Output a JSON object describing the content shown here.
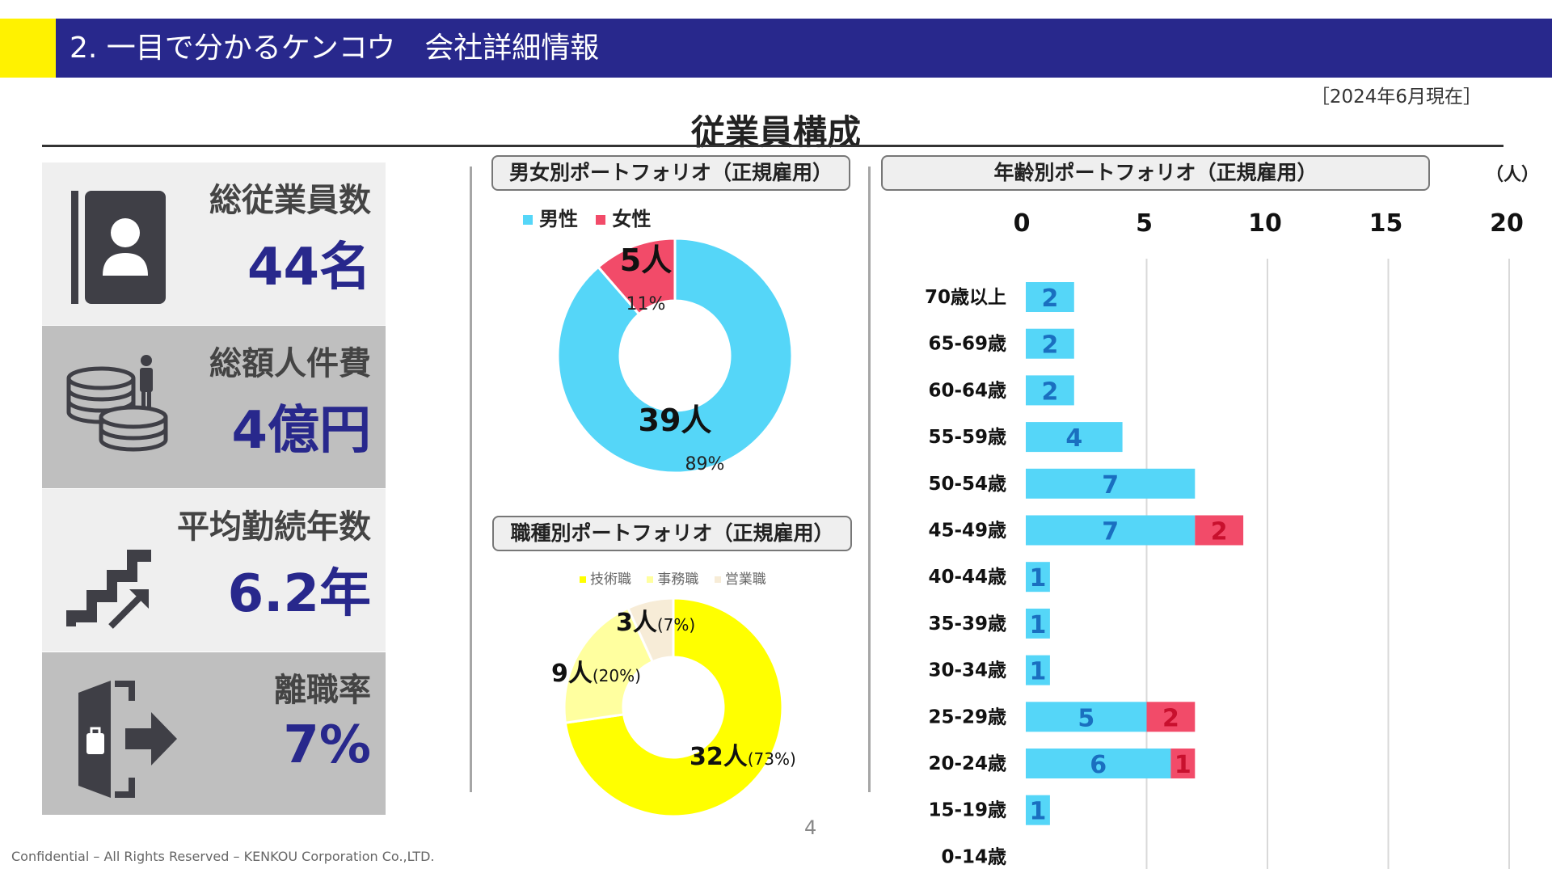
{
  "header": {
    "title": "2. 一目で分かるケンコウ　会社詳細情報",
    "as_of": "［2024年6月現在］"
  },
  "section_title": "従業員構成",
  "kpis": [
    {
      "label": "総従業員数",
      "value": "44名",
      "icon": "contact-book-icon"
    },
    {
      "label": "総額人件費",
      "value": "4億円",
      "icon": "coins-person-icon"
    },
    {
      "label": "平均勤続年数",
      "value": "6.2年",
      "icon": "stairs-arrow-icon"
    },
    {
      "label": "離職率",
      "value": "7%",
      "icon": "exit-door-icon"
    }
  ],
  "gender_chart": {
    "pill": "男女別ポートフォリオ（正規雇用）",
    "legend": [
      "男性",
      "女性"
    ]
  },
  "job_chart": {
    "pill": "職種別ポートフォリオ（正規雇用）",
    "legend": [
      "技術職",
      "事務職",
      "営業職"
    ]
  },
  "age_chart": {
    "pill": "年齢別ポートフォリオ（正規雇用）",
    "unit": "（人）"
  },
  "chart_data": [
    {
      "type": "pie",
      "variant": "donut",
      "categories": [
        "男性",
        "女性"
      ],
      "values": [
        39,
        5
      ],
      "value_labels": [
        "39人",
        "5人"
      ],
      "percent_labels": [
        "89%",
        "11%"
      ],
      "colors": [
        "#55d6f8",
        "#f24b69"
      ]
    },
    {
      "type": "pie",
      "variant": "donut",
      "categories": [
        "技術職",
        "事務職",
        "営業職"
      ],
      "values": [
        32,
        9,
        3
      ],
      "value_labels": [
        "32人",
        "9人",
        "3人"
      ],
      "percent_labels": [
        "(73%)",
        "(20%)",
        "(7%)"
      ],
      "colors": [
        "#ffff00",
        "#ffff9f",
        "#f7ecd7"
      ]
    },
    {
      "type": "bar",
      "orientation": "horizontal",
      "stacked": true,
      "categories": [
        "70歳以上",
        "65-69歳",
        "60-64歳",
        "55-59歳",
        "50-54歳",
        "45-49歳",
        "40-44歳",
        "35-39歳",
        "30-34歳",
        "25-29歳",
        "20-24歳",
        "15-19歳",
        "0-14歳"
      ],
      "series": [
        {
          "values": [
            2,
            2,
            2,
            4,
            7,
            7,
            1,
            1,
            1,
            5,
            6,
            1,
            0
          ],
          "color": "#55d6f8",
          "label_color": "#1a6fc0"
        },
        {
          "values": [
            0,
            0,
            0,
            0,
            0,
            2,
            0,
            0,
            0,
            2,
            1,
            0,
            0
          ],
          "color": "#f24b69",
          "label_color": "#c8102e"
        }
      ],
      "xlim": [
        0,
        20
      ],
      "xticks": [
        "0",
        "5",
        "10",
        "15",
        "20"
      ],
      "grid": true
    }
  ],
  "page_number": "4",
  "footer": "Confidential – All Rights Reserved – KENKOU Corporation Co.,LTD."
}
